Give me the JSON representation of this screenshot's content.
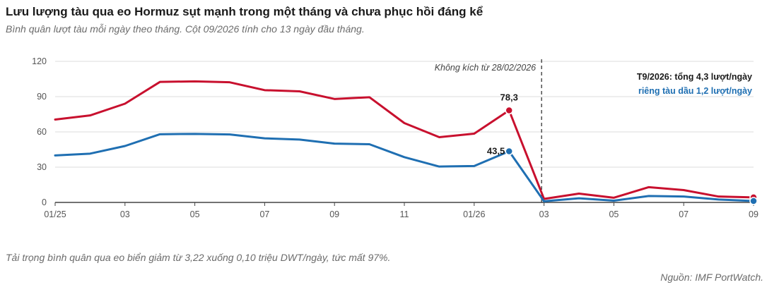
{
  "title": "Lưu lượng tàu qua eo Hormuz sụt mạnh trong một tháng và chưa phục hồi đáng kể",
  "subtitle": "Bình quân lượt tàu mỗi ngày theo tháng. Cột 09/2026 tính cho 13 ngày đầu tháng.",
  "note": "Tải trọng bình quân qua eo biển giảm từ 3,22 xuống 0,10 triệu DWT/ngày, tức mất 97%.",
  "source": "Nguồn: IMF PortWatch.",
  "colors": {
    "total": "#c8102e",
    "tanker": "#1f6fb2",
    "grid": "#dddddd",
    "axis": "#555555"
  },
  "chart_data": {
    "type": "line",
    "x": [
      "01/25",
      "02/25",
      "03/25",
      "04/25",
      "05/25",
      "06/25",
      "07/25",
      "08/25",
      "09/25",
      "10/25",
      "11/25",
      "12/25",
      "01/26",
      "02/26",
      "03/26",
      "04/26",
      "05/26",
      "06/26",
      "07/26",
      "08/26",
      "09/26"
    ],
    "x_tick_labels": [
      "01/25",
      "03",
      "05",
      "07",
      "09",
      "11",
      "01/26",
      "03",
      "05",
      "07",
      "09"
    ],
    "y_ticks": [
      "0",
      "30",
      "60",
      "90",
      "120"
    ],
    "ylim": [
      0,
      120
    ],
    "grid": true,
    "series": [
      {
        "key": "total",
        "values": [
          70.5,
          74,
          84,
          102.5,
          103,
          102.2,
          95.5,
          94.5,
          88,
          89.5,
          67.5,
          55.5,
          58.5,
          78.3,
          3,
          7.5,
          4,
          13,
          10.5,
          5,
          4.3
        ]
      },
      {
        "key": "tanker",
        "values": [
          40,
          41.5,
          48,
          58,
          58.3,
          57.8,
          54.5,
          53.5,
          50,
          49.5,
          38.5,
          30.5,
          31,
          43.5,
          1,
          3.5,
          1.5,
          5.5,
          5,
          2.5,
          1.2
        ]
      }
    ],
    "annotations": {
      "event_label": "Không kích từ 28/02/2026",
      "total_peak_label": "78,3",
      "tanker_peak_label": "43,5",
      "last_total_label": "T9/2026: tổng 4,3 lượt/ngày",
      "last_tanker_label": "riêng tàu dầu 1,2 lượt/ngày"
    }
  }
}
